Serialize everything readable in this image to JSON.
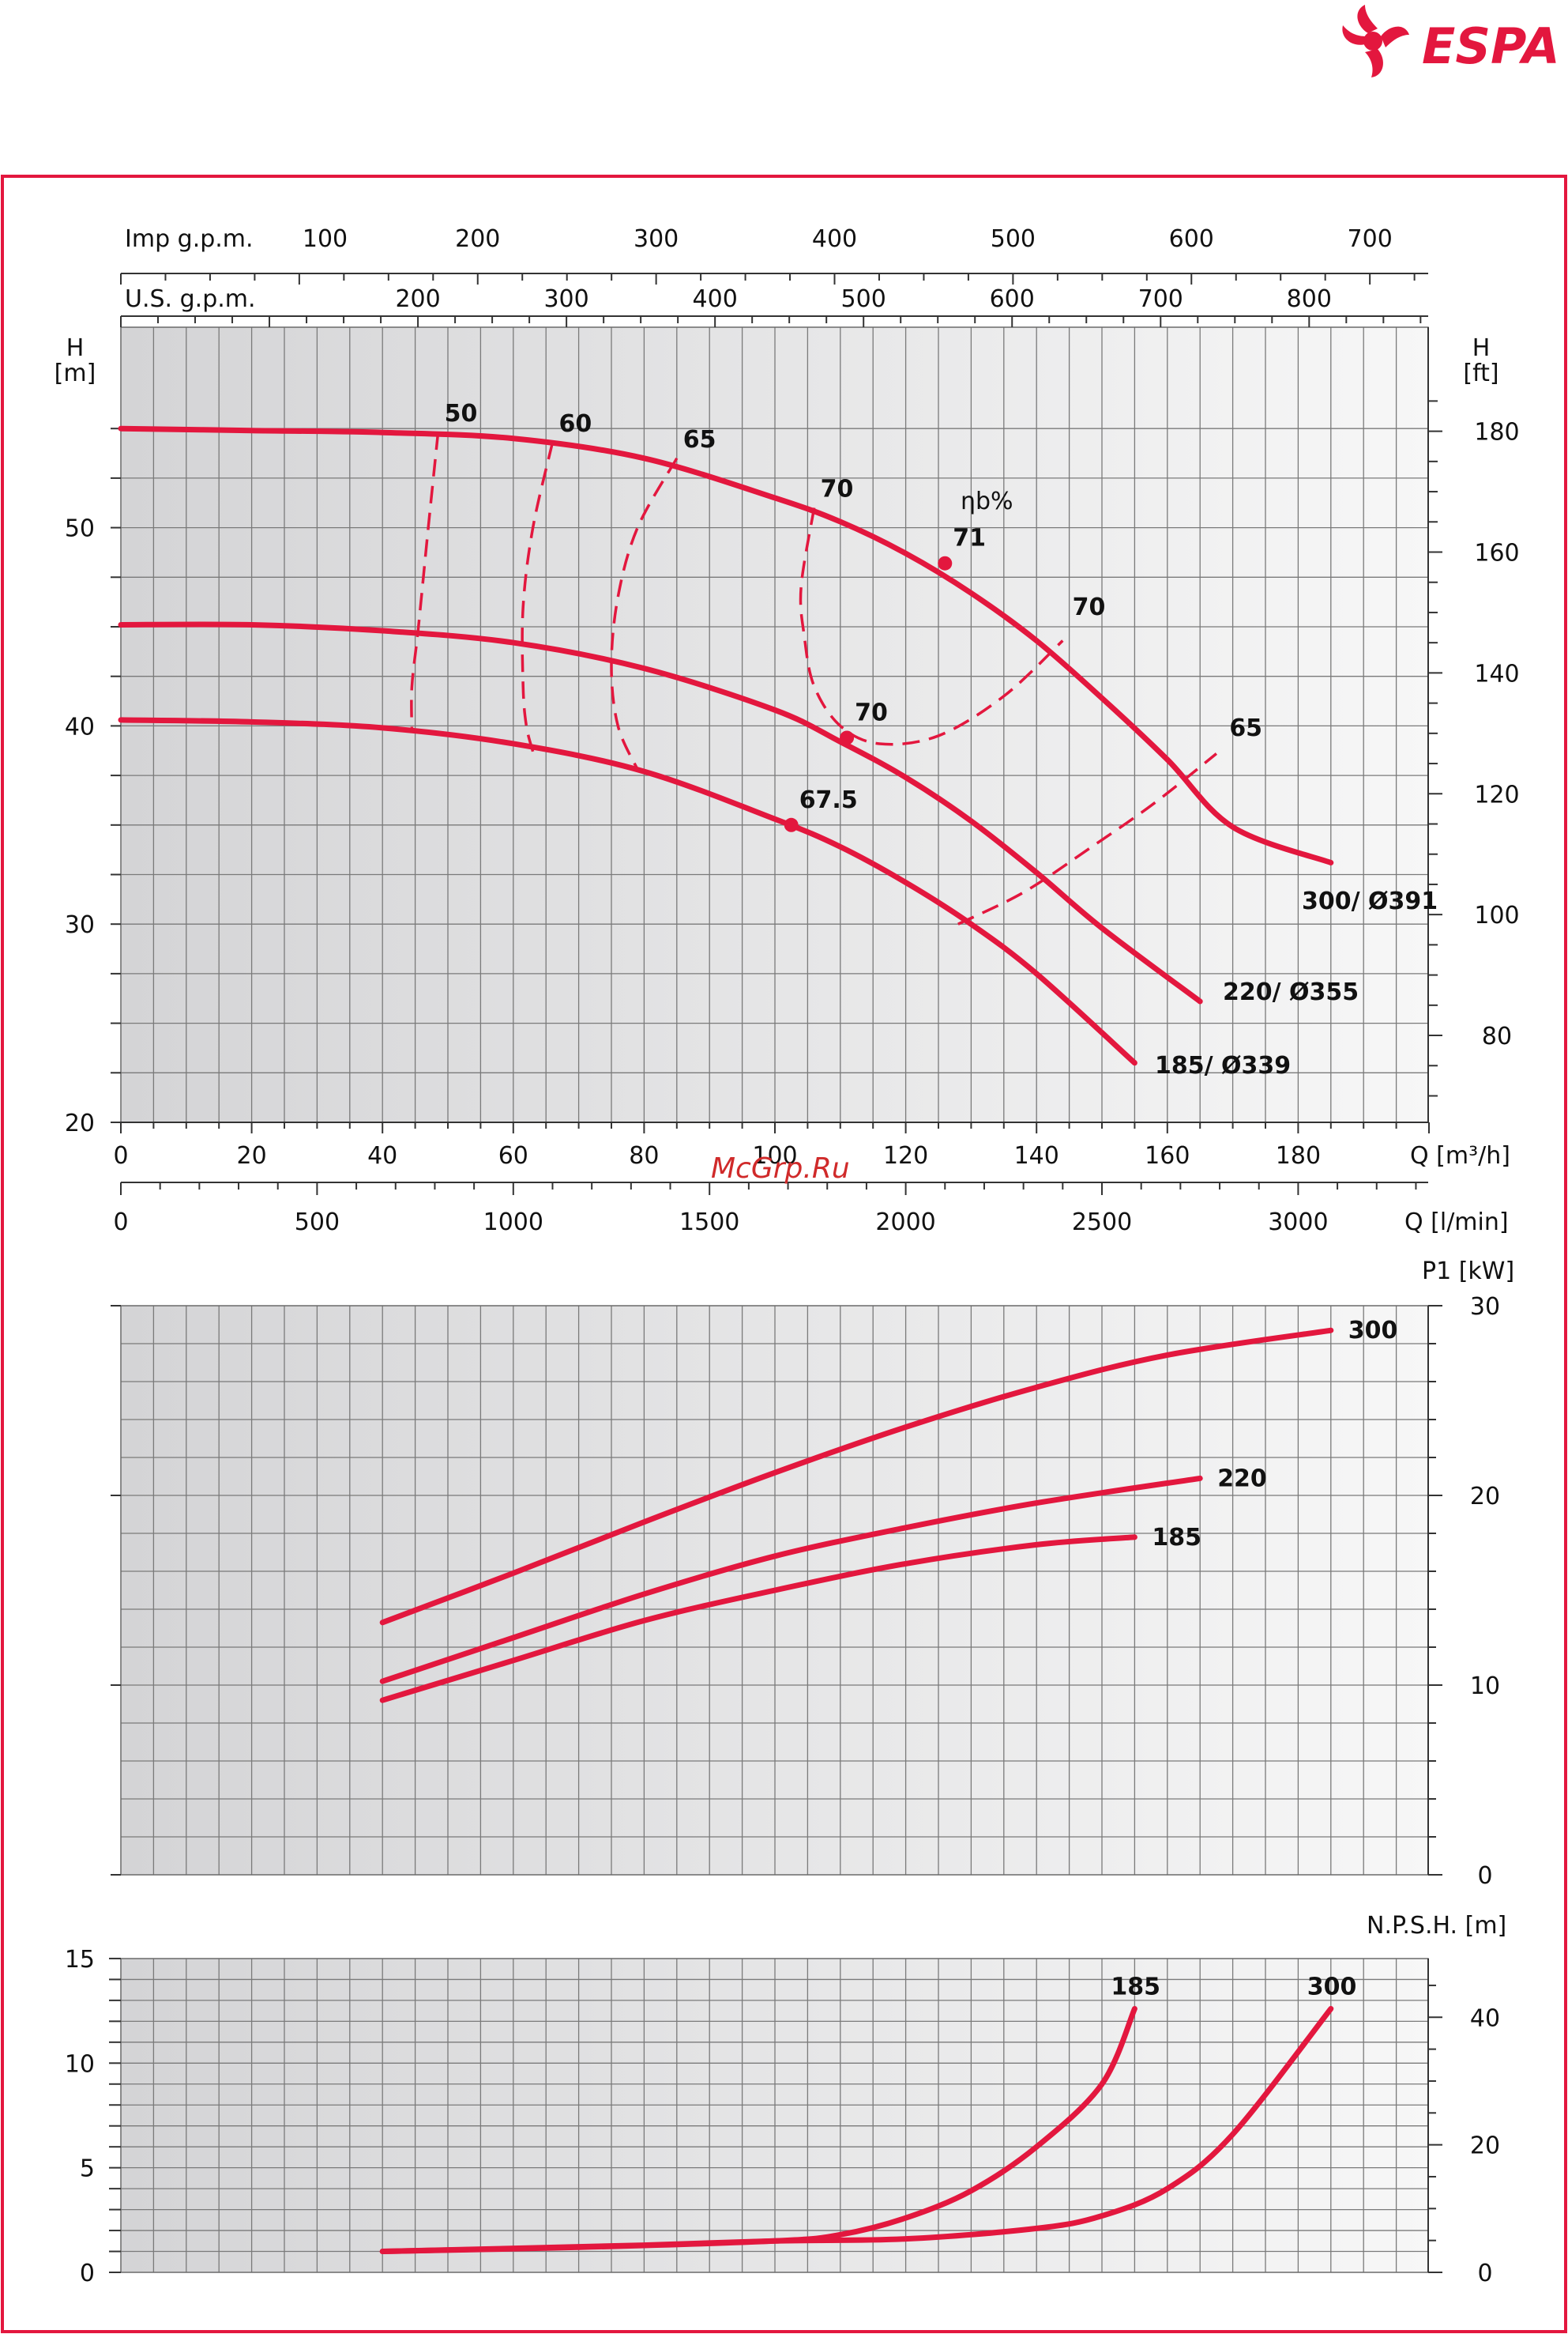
{
  "brand": {
    "name": "ESPA",
    "color": "#e3173e"
  },
  "watermark": "McGrp.Ru",
  "colors": {
    "curve": "#e3173e",
    "frame": "#e3173e",
    "grid": "#7a7a7a"
  },
  "chart_data": [
    {
      "type": "line",
      "title": "",
      "xlabel": "Q [m³/h]",
      "xlabel_lmin": "Q [l/min]",
      "ylabel_left": "H\n[m]",
      "ylabel_right": "H\n[ft]",
      "top_axis_imp": "Imp g.p.m.",
      "top_axis_us": "U.S. g.p.m.",
      "eff_title": "ηb%",
      "xlim": [
        0,
        200
      ],
      "ylim": [
        20,
        57
      ],
      "x_ticks": [
        "0",
        "20",
        "40",
        "60",
        "80",
        "100",
        "120",
        "140",
        "160",
        "180"
      ],
      "x_ticks_lmin": [
        "0",
        "500",
        "1000",
        "1500",
        "2000",
        "2500",
        "3000"
      ],
      "y_ticks_m": [
        "20",
        "30",
        "40",
        "50"
      ],
      "y_ticks_ft": [
        "80",
        "100",
        "120",
        "140",
        "160",
        "180"
      ],
      "imp_ticks": [
        "100",
        "200",
        "300",
        "400",
        "500",
        "600",
        "700"
      ],
      "us_ticks": [
        "200",
        "300",
        "400",
        "500",
        "600",
        "700",
        "800"
      ],
      "series": [
        {
          "name": "300/ Ø391",
          "x": [
            0,
            20,
            40,
            60,
            80,
            100,
            110,
            120,
            130,
            140,
            150,
            160,
            170,
            185
          ],
          "y": [
            55,
            54.9,
            54.8,
            54.5,
            53.5,
            51.5,
            50.3,
            48.7,
            46.7,
            44.3,
            41.4,
            38.3,
            34.9,
            33.1
          ]
        },
        {
          "name": "220/ Ø355",
          "x": [
            0,
            20,
            40,
            60,
            80,
            100,
            110,
            120,
            130,
            140,
            150,
            165
          ],
          "y": [
            45.1,
            45.1,
            44.8,
            44.2,
            42.9,
            40.8,
            39.2,
            37.4,
            35.2,
            32.6,
            29.8,
            26.1
          ]
        },
        {
          "name": "185/ Ø339",
          "x": [
            0,
            20,
            40,
            60,
            80,
            100,
            110,
            120,
            130,
            140,
            155
          ],
          "y": [
            40.3,
            40.2,
            39.9,
            39.1,
            37.7,
            35.3,
            33.9,
            32.1,
            30.0,
            27.5,
            23.0
          ]
        }
      ],
      "efficiency_lines": [
        {
          "label": "50",
          "x": [
            48.5,
            47,
            45.5,
            44.5,
            44.5
          ],
          "y": [
            54.8,
            50,
            45,
            42,
            39.8
          ]
        },
        {
          "label": "60",
          "x": [
            66,
            63,
            61.5,
            61.5,
            62,
            63
          ],
          "y": [
            54.3,
            50,
            46,
            42,
            40,
            38.7
          ]
        },
        {
          "label": "65",
          "x": [
            85,
            79,
            76,
            75,
            76,
            79
          ],
          "y": [
            53.5,
            50,
            46.5,
            43,
            40,
            37.8
          ]
        },
        {
          "label": "70",
          "x": [
            106,
            104,
            104.5,
            106,
            110,
            116,
            125,
            135,
            144
          ],
          "y": [
            51,
            47,
            44.5,
            42,
            40,
            39.1,
            39.5,
            41.5,
            44.3
          ]
        },
        {
          "label": "65",
          "x": [
            128,
            138,
            148,
            158,
            167.5
          ],
          "y": [
            30,
            31.6,
            33.8,
            36.1,
            38.6
          ]
        }
      ],
      "points": [
        {
          "label": "71",
          "x": 126,
          "y": 48.2,
          "series": "300/ Ø391"
        },
        {
          "label": "70",
          "x": 111,
          "y": 39.4,
          "series": "220/ Ø355"
        },
        {
          "label": "67.5",
          "x": 102.5,
          "y": 35.0,
          "series": "185/ Ø339"
        }
      ],
      "extra_labels": [
        {
          "label": "70",
          "x": 145,
          "y": 45.6
        },
        {
          "label": "65",
          "x": 169,
          "y": 39.5
        }
      ]
    },
    {
      "type": "line",
      "title": "",
      "ylabel_right": "P1 [kW]",
      "xlim": [
        0,
        200
      ],
      "ylim": [
        0,
        30
      ],
      "y_ticks": [
        "0",
        "10",
        "20",
        "30"
      ],
      "series": [
        {
          "name": "300",
          "x": [
            40,
            60,
            80,
            100,
            120,
            140,
            160,
            185
          ],
          "y": [
            13.3,
            15.9,
            18.6,
            21.2,
            23.6,
            25.7,
            27.4,
            28.7
          ]
        },
        {
          "name": "220",
          "x": [
            40,
            60,
            80,
            100,
            120,
            140,
            165
          ],
          "y": [
            10.2,
            12.5,
            14.8,
            16.8,
            18.3,
            19.6,
            20.9
          ]
        },
        {
          "name": "185",
          "x": [
            40,
            60,
            80,
            100,
            120,
            140,
            155
          ],
          "y": [
            9.2,
            11.3,
            13.4,
            15.0,
            16.4,
            17.4,
            17.8
          ]
        }
      ]
    },
    {
      "type": "line",
      "title": "",
      "ylabel_right": "N.P.S.H. [m]",
      "xlim": [
        0,
        200
      ],
      "ylim": [
        0,
        15
      ],
      "y_ticks_left": [
        "0",
        "5",
        "10",
        "15"
      ],
      "y_ticks_right": [
        "0",
        "20",
        "40"
      ],
      "series": [
        {
          "name": "185",
          "x": [
            40,
            70,
            100,
            110,
            120,
            130,
            140,
            150,
            155
          ],
          "y": [
            1.0,
            1.2,
            1.5,
            1.8,
            2.6,
            3.9,
            6.0,
            9.0,
            12.6
          ]
        },
        {
          "name": "300",
          "x": [
            40,
            80,
            100,
            120,
            140,
            150,
            160,
            170,
            185
          ],
          "y": [
            1.0,
            1.3,
            1.5,
            1.6,
            2.1,
            2.7,
            4.0,
            6.6,
            12.6
          ]
        }
      ]
    }
  ]
}
